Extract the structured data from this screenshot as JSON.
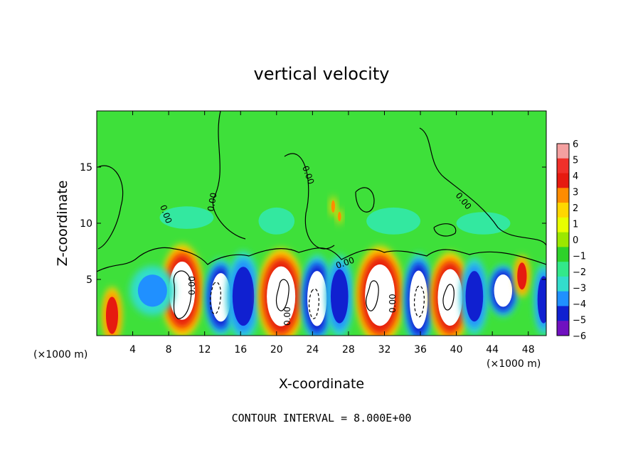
{
  "chart_data": {
    "type": "heatmap",
    "title": "vertical velocity",
    "xlabel": "X-coordinate",
    "ylabel": "Z-coordinate",
    "x_unit": "(×1000 m)",
    "x_ticks": [
      4,
      8,
      12,
      16,
      20,
      24,
      28,
      32,
      36,
      40,
      44,
      48
    ],
    "y_ticks": [
      5,
      10,
      15
    ],
    "xlim": [
      0,
      50
    ],
    "ylim": [
      0,
      20
    ],
    "colorbar": {
      "ticks": [
        "6",
        "5",
        "4",
        "3",
        "2",
        "1",
        "0",
        "−1",
        "−2",
        "−3",
        "−4",
        "−5",
        "−6"
      ],
      "colors": [
        "#f4a0a0",
        "#f0302a",
        "#e61a10",
        "#ff8c00",
        "#ffd700",
        "#e8ff00",
        "#9be800",
        "#2ed22a",
        "#33e88a",
        "#33ddcc",
        "#2090ff",
        "#1020d0",
        "#7010c0"
      ]
    },
    "contour_labels": [
      "0.00",
      "0.00",
      "0.00",
      "0.00",
      "0.00",
      "0.00",
      "0.00",
      "0.00"
    ],
    "contour_interval_text": "CONTOUR INTERVAL = 8.000E+00",
    "cells": [
      {
        "x": 1.7,
        "z": 1.8,
        "w": 0.9,
        "h": 2.2,
        "value": 4.5
      },
      {
        "x": 9.5,
        "z": 4.0,
        "w": 2.0,
        "h": 3.6,
        "value": 7.0
      },
      {
        "x": 13.8,
        "z": 3.4,
        "w": 1.5,
        "h": 3.0,
        "value": -7.0
      },
      {
        "x": 16.3,
        "z": 3.5,
        "w": 1.6,
        "h": 3.5,
        "value": -4.8
      },
      {
        "x": 20.5,
        "z": 3.5,
        "w": 2.2,
        "h": 3.7,
        "value": 7.0
      },
      {
        "x": 24.5,
        "z": 3.3,
        "w": 1.5,
        "h": 3.4,
        "value": -7.0
      },
      {
        "x": 27.0,
        "z": 3.5,
        "w": 1.3,
        "h": 3.2,
        "value": -4.5
      },
      {
        "x": 31.5,
        "z": 3.6,
        "w": 2.3,
        "h": 3.8,
        "value": 7.0
      },
      {
        "x": 35.8,
        "z": 3.2,
        "w": 1.4,
        "h": 3.6,
        "value": -7.0
      },
      {
        "x": 39.3,
        "z": 3.4,
        "w": 1.9,
        "h": 3.5,
        "value": 7.0
      },
      {
        "x": 42.0,
        "z": 3.5,
        "w": 1.3,
        "h": 3.0,
        "value": -4.8
      },
      {
        "x": 45.2,
        "z": 4.0,
        "w": 1.4,
        "h": 2.0,
        "value": -7.0
      },
      {
        "x": 47.3,
        "z": 5.3,
        "w": 0.7,
        "h": 1.6,
        "value": 4.5
      },
      {
        "x": 49.7,
        "z": 3.2,
        "w": 0.9,
        "h": 2.8,
        "value": -4.0
      },
      {
        "x": 6.2,
        "z": 4.0,
        "w": 2.5,
        "h": 2.2,
        "value": -3.0
      },
      {
        "x": 26.3,
        "z": 11.5,
        "w": 0.35,
        "h": 0.9,
        "value": 3.5
      },
      {
        "x": 27.0,
        "z": 10.6,
        "w": 0.3,
        "h": 0.7,
        "value": 3.0
      },
      {
        "x": 20.0,
        "z": 10.2,
        "w": 2.0,
        "h": 1.2,
        "value": -1.2
      },
      {
        "x": 10.0,
        "z": 10.5,
        "w": 3.0,
        "h": 1.0,
        "value": -1.0
      },
      {
        "x": 33.0,
        "z": 10.2,
        "w": 3.0,
        "h": 1.2,
        "value": -1.1
      },
      {
        "x": 43.0,
        "z": 10.0,
        "w": 3.0,
        "h": 1.0,
        "value": -0.9
      }
    ]
  }
}
